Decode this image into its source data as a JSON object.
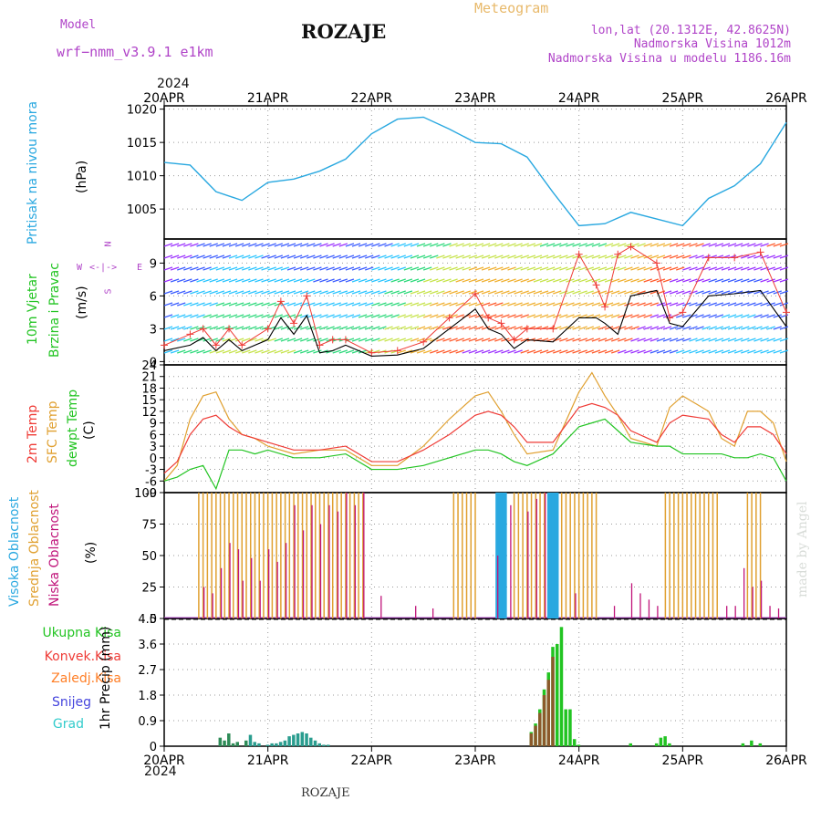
{
  "header": {
    "model_label": "Model",
    "model_name": "wrf−nmm_v3.9.1  e1km",
    "station": "ROZAJE",
    "product": "Meteogram",
    "coords": "lon,lat (20.1312E, 42.8625N)",
    "elevation": "Nadmorska Visina 1012m",
    "model_elevation": "Nadmorska Visina u modelu 1186.16m",
    "year_top": "2024",
    "year_bottom": "2024",
    "footer_station": "ROZAJE",
    "credit": "made by Angel"
  },
  "colors": {
    "pressure": "#29a8e0",
    "wind_speed": "#000000",
    "wind_gust": "#ef3b36",
    "temp2m": "#ef3b36",
    "sfc_temp": "#e0a030",
    "dewpoint": "#22c422",
    "high_cloud": "#29a8e0",
    "mid_cloud": "#e0a030",
    "low_cloud": "#c0147a",
    "total_precip": "#22c422",
    "convective": "#ef3b36",
    "frozen": "#ff7f27",
    "snow": "#4444dd",
    "grad": "#33cccc",
    "label_purple": "#b044c8"
  },
  "chart_data": [
    {
      "type": "line",
      "panel": "pressure",
      "ylabel_left": "Pritisak na nivou mora",
      "ylabel_unit": "(hPa)",
      "x_ticks": [
        "20APR",
        "21APR",
        "22APR",
        "23APR",
        "24APR",
        "25APR",
        "26APR"
      ],
      "y_ticks": [
        1005,
        1010,
        1015,
        1020
      ],
      "ylim": [
        1000.5,
        1020.5
      ],
      "grid": true,
      "x_hours": [
        0,
        6,
        12,
        18,
        24,
        30,
        36,
        42,
        48,
        54,
        60,
        66,
        72,
        78,
        84,
        90,
        96,
        102,
        108,
        114,
        120,
        126,
        132,
        138,
        144
      ],
      "series": [
        {
          "values": [
            1012.0,
            1011.6,
            1007.6,
            1006.3,
            1009.0,
            1009.5,
            1010.7,
            1012.5,
            1016.3,
            1018.5,
            1018.8,
            1017.0,
            1015.0,
            1014.8,
            1012.8,
            1007.5,
            1002.5,
            1002.8,
            1004.5,
            1003.5,
            1002.5,
            1006.6,
            1008.5,
            1011.8,
            1018.0
          ]
        }
      ]
    },
    {
      "type": "line",
      "panel": "wind",
      "ylabel_left": "10m Vjetar",
      "ylabel_left2": "Brzina i Pravac",
      "ylabel_unit": "(m/s)",
      "compass": [
        "N",
        "W",
        "E",
        "S"
      ],
      "y_ticks": [
        0,
        3,
        6,
        9
      ],
      "ylim": [
        -0.3,
        11.2
      ],
      "grid": true,
      "x_hours": [
        0,
        6,
        9,
        12,
        15,
        18,
        24,
        27,
        30,
        33,
        36,
        39,
        42,
        48,
        54,
        60,
        66,
        72,
        75,
        78,
        81,
        84,
        90,
        96,
        100,
        102,
        105,
        108,
        114,
        117,
        120,
        126,
        132,
        138,
        144
      ],
      "series": [
        {
          "values": [
            1.0,
            1.5,
            2.2,
            1.0,
            2.0,
            1.0,
            2.0,
            4.0,
            2.5,
            4.2,
            0.8,
            1.0,
            1.5,
            0.5,
            0.6,
            1.2,
            3.0,
            4.8,
            3.0,
            2.5,
            1.2,
            2.0,
            1.8,
            4.0,
            4.0,
            3.5,
            2.5,
            6.0,
            6.5,
            3.5,
            3.2,
            6.0,
            6.2,
            6.5,
            3.2
          ]
        },
        {
          "values": [
            1.5,
            2.5,
            3.0,
            1.5,
            3.0,
            1.5,
            3.0,
            5.5,
            3.5,
            6.0,
            1.5,
            2.0,
            2.0,
            0.8,
            1.0,
            1.8,
            4.0,
            6.2,
            4.0,
            3.5,
            2.0,
            3.0,
            3.0,
            9.8,
            7.0,
            5.0,
            9.8,
            10.5,
            9.0,
            4.0,
            4.5,
            9.5,
            9.5,
            10.0,
            4.5
          ]
        }
      ]
    },
    {
      "type": "line",
      "panel": "temperature",
      "ylabel_left": "2m Temp",
      "ylabel_left2": "SFC Temp",
      "ylabel_left3": "dewpt Temp",
      "ylabel_unit": "(C)",
      "y_ticks": [
        -9,
        -6,
        -3,
        0,
        3,
        6,
        9,
        12,
        15,
        18,
        21,
        24
      ],
      "ylim": [
        -9,
        24
      ],
      "grid": true,
      "x_hours": [
        0,
        3,
        6,
        9,
        12,
        15,
        18,
        21,
        24,
        30,
        36,
        42,
        48,
        54,
        60,
        66,
        72,
        75,
        78,
        81,
        84,
        90,
        96,
        99,
        102,
        105,
        108,
        114,
        117,
        120,
        126,
        129,
        132,
        135,
        138,
        141,
        144
      ],
      "series": [
        {
          "values": [
            -4,
            -1,
            6,
            10,
            11,
            8,
            6,
            5,
            4,
            2,
            2,
            3,
            -1,
            -1,
            2,
            6,
            11,
            12,
            11,
            8,
            4,
            4,
            13,
            14,
            13,
            11,
            7,
            4,
            9,
            11,
            10,
            6,
            4,
            8,
            8,
            6,
            1
          ]
        },
        {
          "values": [
            -6,
            -2,
            10,
            16,
            17,
            10,
            6,
            5,
            3,
            1,
            2,
            2,
            -2,
            -2,
            3,
            10,
            16,
            17,
            12,
            6,
            1,
            2,
            17,
            22,
            16,
            11,
            5,
            3,
            13,
            16,
            12,
            5,
            3,
            12,
            12,
            9,
            -1
          ]
        },
        {
          "values": [
            -6,
            -5,
            -3,
            -2,
            -8,
            2,
            2,
            1,
            2,
            0,
            0,
            1,
            -3,
            -3,
            -2,
            0,
            2,
            2,
            1,
            -1,
            -2,
            1,
            8,
            9,
            10,
            7,
            4,
            3,
            3,
            1,
            1,
            1,
            0,
            0,
            1,
            0,
            -6
          ]
        }
      ]
    },
    {
      "type": "bar",
      "panel": "clouds",
      "ylabel_left": "Visoka Oblacnost",
      "ylabel_left2": "Srednja Oblacnost",
      "ylabel_left3": "Niska Oblacnost",
      "ylabel_unit": "(%)",
      "y_ticks": [
        0,
        25,
        50,
        75,
        100
      ],
      "ylim": [
        0,
        100
      ],
      "grid": true,
      "series": [
        {
          "name": "mid",
          "hours_start": 8,
          "hours_end": 46,
          "value": 100
        },
        {
          "name": "mid",
          "hours_start": 67,
          "hours_end": 72,
          "value": 100
        },
        {
          "name": "high",
          "hours_start": 77,
          "hours_end": 79,
          "value": 100
        },
        {
          "name": "mid",
          "hours_start": 81,
          "hours_end": 100,
          "value": 100
        },
        {
          "name": "high",
          "hours_start": 89,
          "hours_end": 91,
          "value": 100
        },
        {
          "name": "mid",
          "hours_start": 116,
          "hours_end": 128,
          "value": 100
        },
        {
          "name": "mid",
          "hours_start": 135,
          "hours_end": 138,
          "value": 100
        }
      ]
    },
    {
      "type": "bar",
      "panel": "precip",
      "ylabel_left": "Ukupna Kisa",
      "ylabel_left2": "Konvek.Kisa",
      "ylabel_left3": "Zaledj.Kisa",
      "ylabel_left4": "Snijeg",
      "ylabel_left5": "Grad",
      "ylabel_unit": "1hr Precip (mm)",
      "y_ticks": [
        0,
        0.9,
        1.8,
        2.7,
        3.6,
        4.5
      ],
      "ylim": [
        0,
        4.5
      ],
      "grid": true,
      "x_ticks": [
        "20APR",
        "21APR",
        "22APR",
        "23APR",
        "24APR",
        "25APR",
        "26APR"
      ],
      "hours": [
        13,
        14,
        15,
        16,
        17,
        19,
        20,
        21,
        22,
        24,
        25,
        26,
        27,
        28,
        29,
        30,
        31,
        32,
        33,
        34,
        35,
        36,
        37,
        38,
        85,
        86,
        87,
        88,
        89,
        90,
        91,
        92,
        93,
        94,
        95,
        96,
        108,
        114,
        115,
        116,
        117,
        134,
        136,
        138
      ],
      "values": [
        0.3,
        0.2,
        0.45,
        0.1,
        0.15,
        0.2,
        0.4,
        0.15,
        0.1,
        0.05,
        0.1,
        0.1,
        0.15,
        0.2,
        0.35,
        0.4,
        0.45,
        0.5,
        0.45,
        0.3,
        0.2,
        0.1,
        0.05,
        0.05,
        0.5,
        0.8,
        1.3,
        2.0,
        2.6,
        3.5,
        3.6,
        4.2,
        1.3,
        1.3,
        0.25,
        0.05,
        0.1,
        0.1,
        0.3,
        0.35,
        0.1,
        0.1,
        0.2,
        0.1
      ]
    }
  ]
}
